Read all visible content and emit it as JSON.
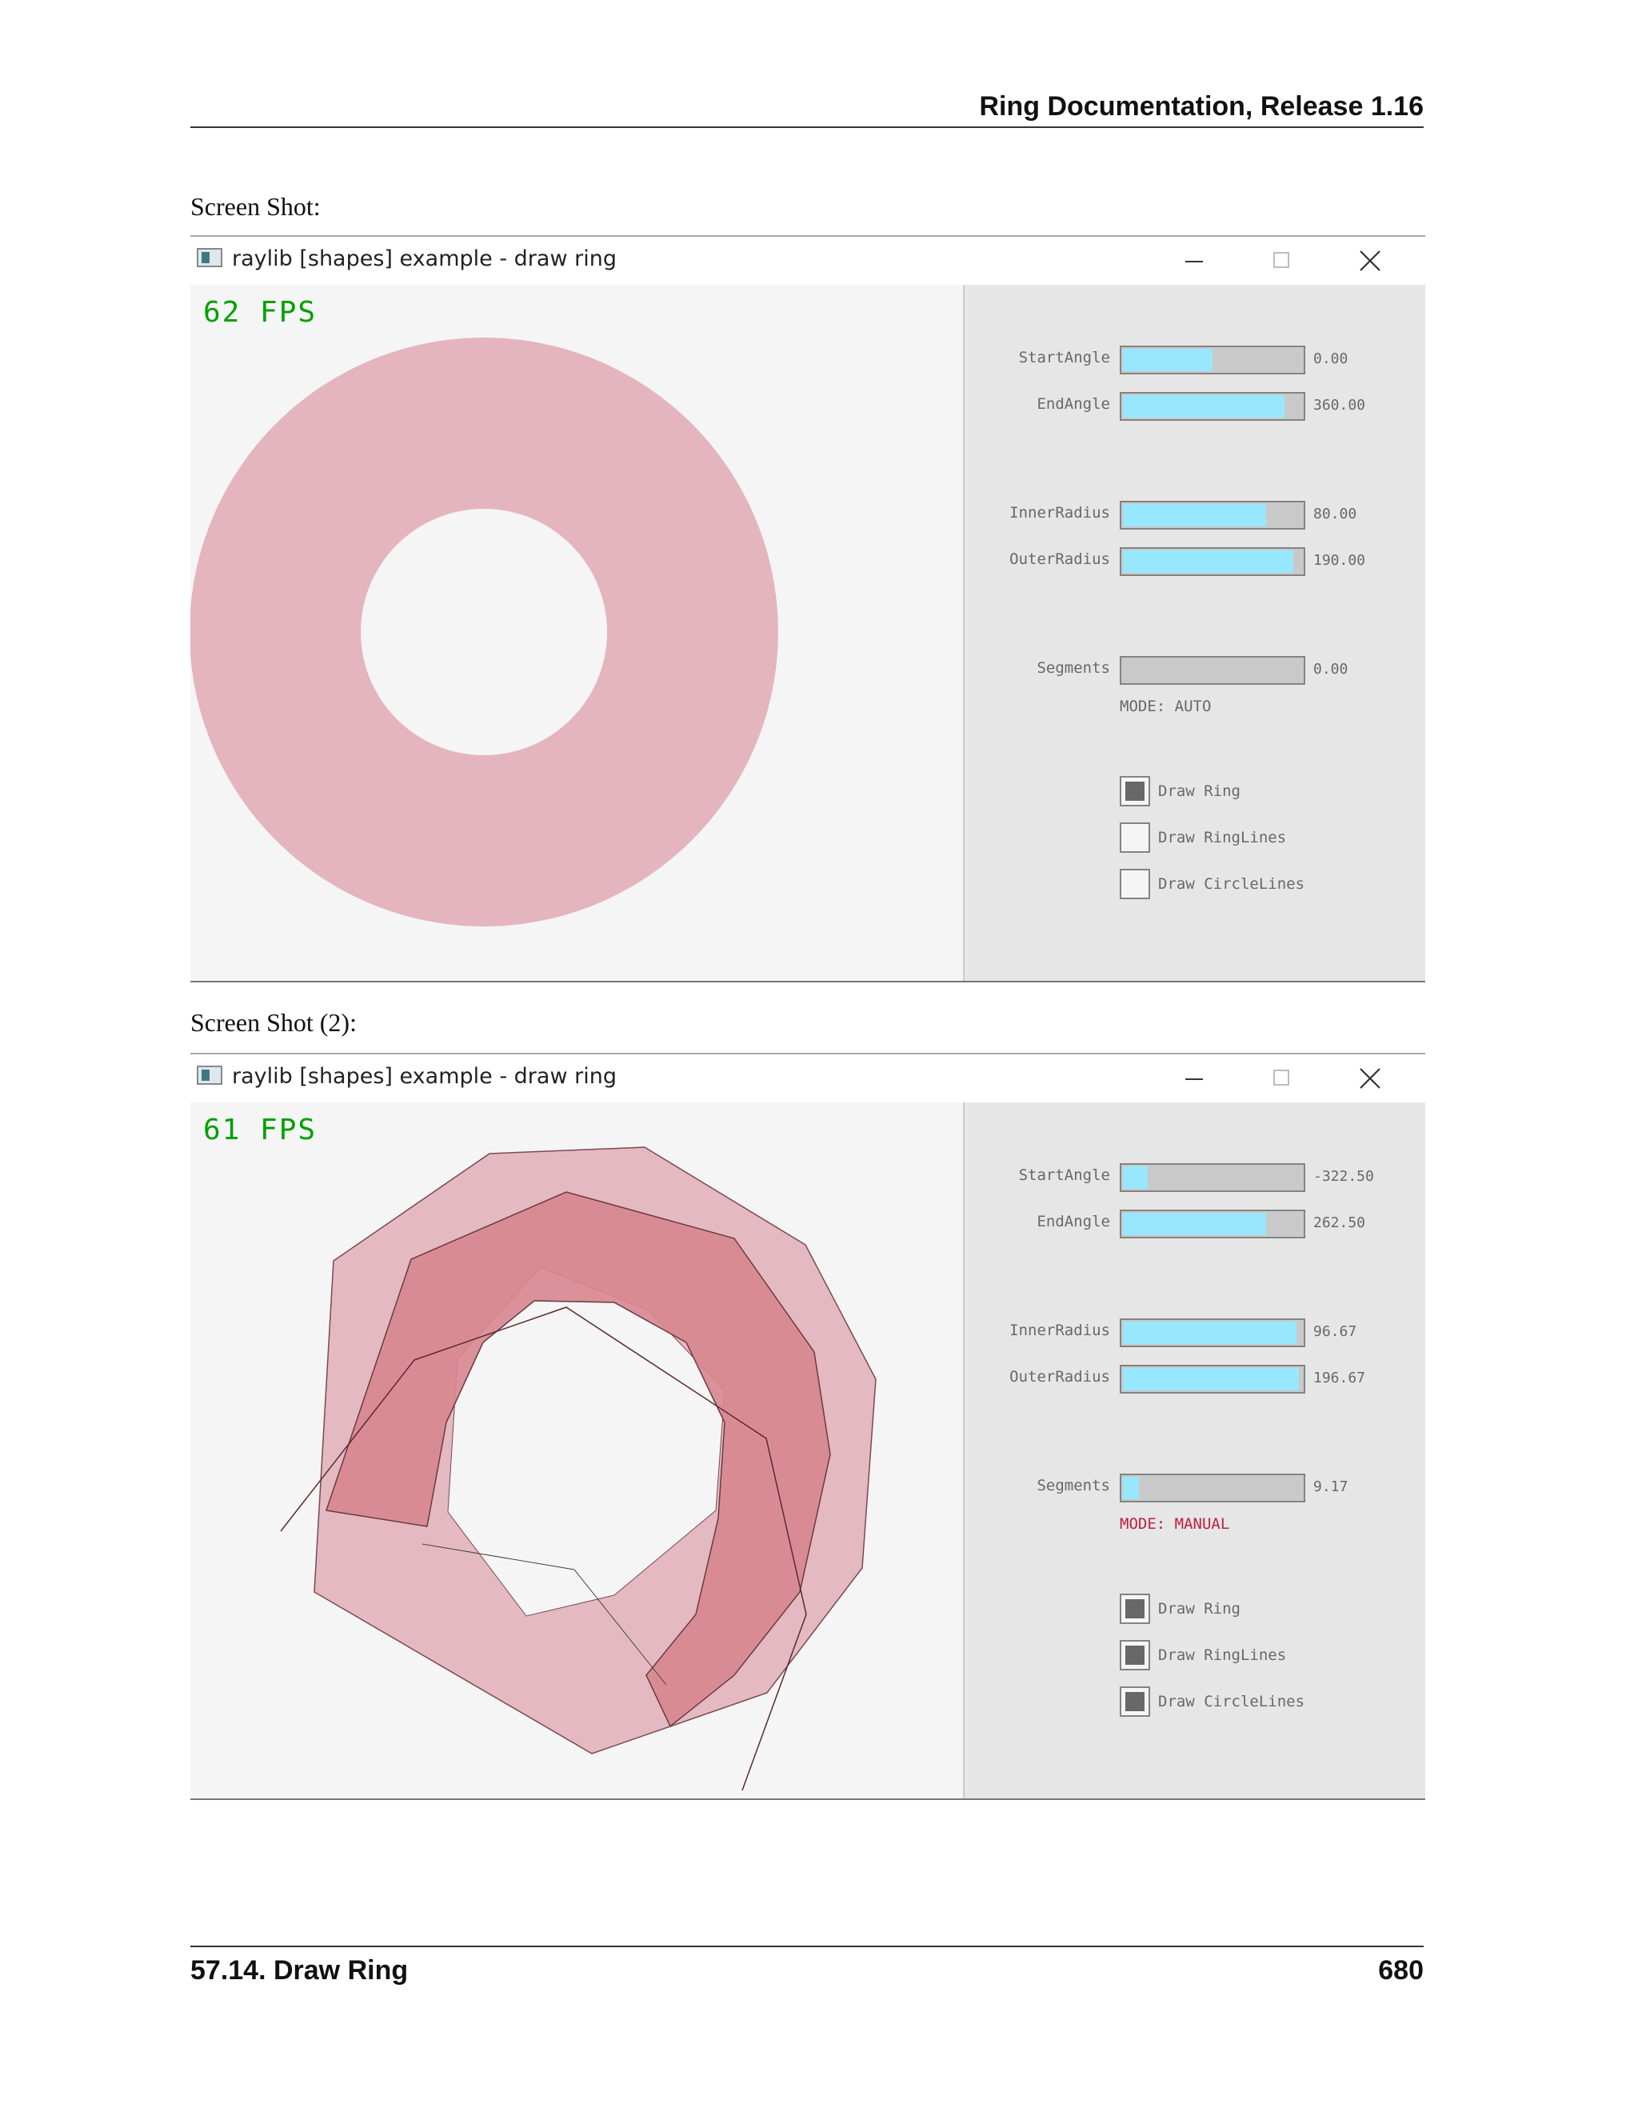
{
  "header": {
    "title": "Ring Documentation, Release 1.16"
  },
  "caption1": "Screen Shot:",
  "caption2": "Screen Shot (2):",
  "colors": {
    "ring_fill": "#e4b5be",
    "ring_fill_dark": "#d7868f",
    "slider_fill": "#97e8ff",
    "fps_green": "#00a000",
    "mode_manual": "#be2041"
  },
  "screens": [
    {
      "window_title": "raylib [shapes] example - draw ring",
      "fps": "62 FPS",
      "controls": {
        "start_angle": {
          "label": "StartAngle",
          "value": "0.00",
          "fraction": 0.5
        },
        "end_angle": {
          "label": "EndAngle",
          "value": "360.00",
          "fraction": 0.9
        },
        "inner_radius": {
          "label": "InnerRadius",
          "value": "80.00",
          "fraction": 0.8
        },
        "outer_radius": {
          "label": "OuterRadius",
          "value": "190.00",
          "fraction": 0.95
        },
        "segments": {
          "label": "Segments",
          "value": "0.00",
          "fraction": 0.0
        }
      },
      "mode": "MODE: AUTO",
      "checkboxes": [
        {
          "label": "Draw Ring",
          "checked": true
        },
        {
          "label": "Draw RingLines",
          "checked": false
        },
        {
          "label": "Draw CircleLines",
          "checked": false
        }
      ]
    },
    {
      "window_title": "raylib [shapes] example - draw ring",
      "fps": "61 FPS",
      "controls": {
        "start_angle": {
          "label": "StartAngle",
          "value": "-322.50",
          "fraction": 0.14
        },
        "end_angle": {
          "label": "EndAngle",
          "value": "262.50",
          "fraction": 0.8
        },
        "inner_radius": {
          "label": "InnerRadius",
          "value": "96.67",
          "fraction": 0.97
        },
        "outer_radius": {
          "label": "OuterRadius",
          "value": "196.67",
          "fraction": 0.98
        },
        "segments": {
          "label": "Segments",
          "value": "9.17",
          "fraction": 0.09
        }
      },
      "mode": "MODE: MANUAL",
      "checkboxes": [
        {
          "label": "Draw Ring",
          "checked": true
        },
        {
          "label": "Draw RingLines",
          "checked": true
        },
        {
          "label": "Draw CircleLines",
          "checked": true
        }
      ]
    }
  ],
  "footer": {
    "section": "57.14.  Draw Ring",
    "page": "680"
  }
}
